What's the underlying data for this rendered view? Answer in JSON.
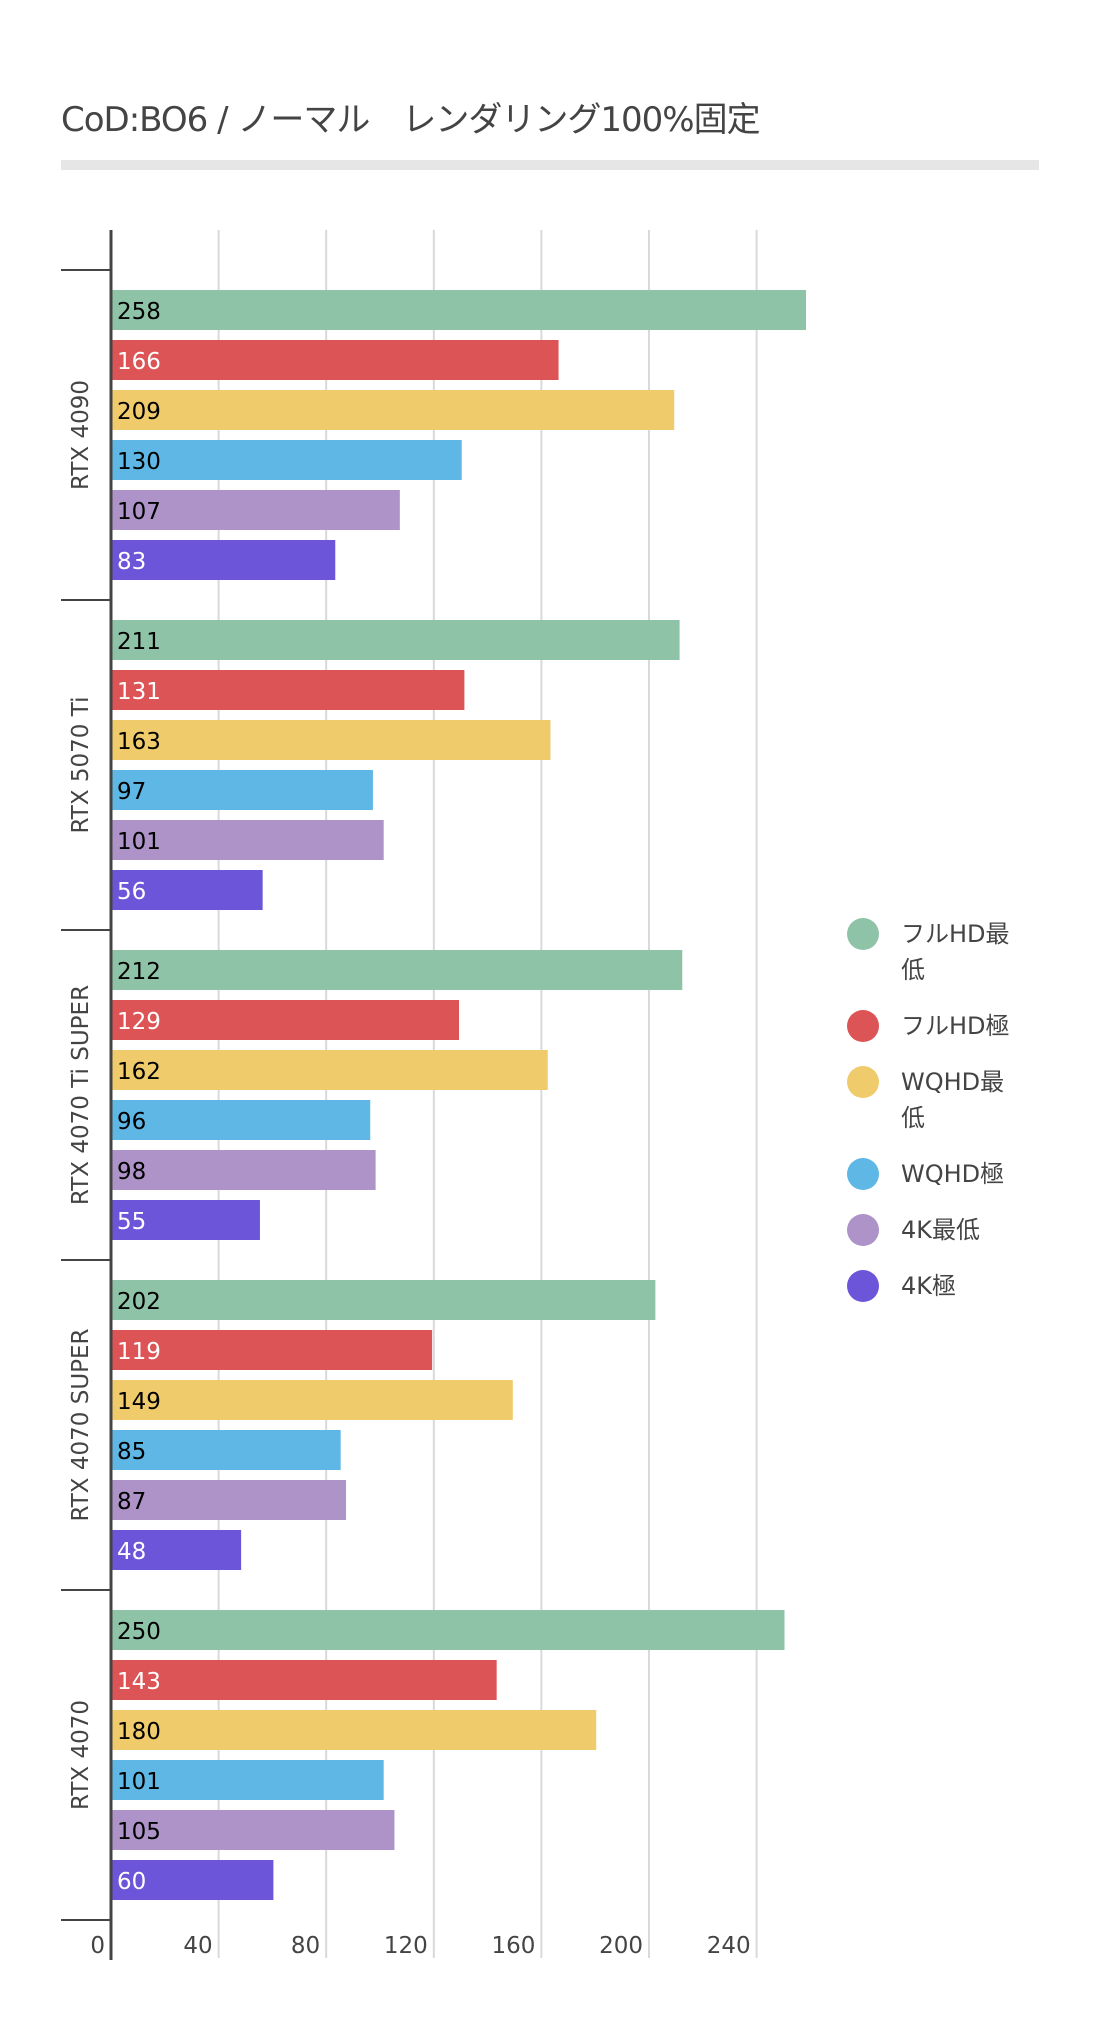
{
  "title": "CoD:BO6 /  ノーマル　レンダリング100%固定",
  "colors": {
    "axis": "#444444",
    "grid": "#d9d9d9",
    "rule": "#e6e6e6"
  },
  "chart_data": {
    "type": "bar",
    "orientation": "horizontal",
    "title": "CoD:BO6 /  ノーマル　レンダリング100%固定",
    "categories": [
      "RTX 4090",
      "RTX 5070 Ti",
      "RTX 4070 Ti SUPER",
      "RTX 4070 SUPER",
      "RTX 4070"
    ],
    "series": [
      {
        "name": "フルHD最低",
        "color": "#8fc3a7",
        "label_color": "#000000",
        "values": [
          258,
          211,
          212,
          202,
          250
        ]
      },
      {
        "name": "フルHD極",
        "color": "#dc5456",
        "label_color": "#ffffff",
        "values": [
          166,
          131,
          129,
          119,
          143
        ]
      },
      {
        "name": "WQHD最低",
        "color": "#f0cb6b",
        "label_color": "#000000",
        "values": [
          209,
          163,
          162,
          149,
          180
        ]
      },
      {
        "name": "WQHD極",
        "color": "#5fb7e5",
        "label_color": "#000000",
        "values": [
          130,
          97,
          96,
          85,
          101
        ]
      },
      {
        "name": "4K最低",
        "color": "#ad93c8",
        "label_color": "#000000",
        "values": [
          107,
          101,
          98,
          87,
          105
        ]
      },
      {
        "name": "4K極",
        "color": "#6c55d9",
        "label_color": "#ffffff",
        "values": [
          83,
          56,
          55,
          48,
          60
        ]
      }
    ],
    "xlim": [
      0,
      260
    ],
    "xticks": [
      0,
      40,
      80,
      120,
      160,
      200,
      240
    ],
    "grid": true,
    "legend_position": "right",
    "xlabel": "",
    "ylabel": ""
  }
}
